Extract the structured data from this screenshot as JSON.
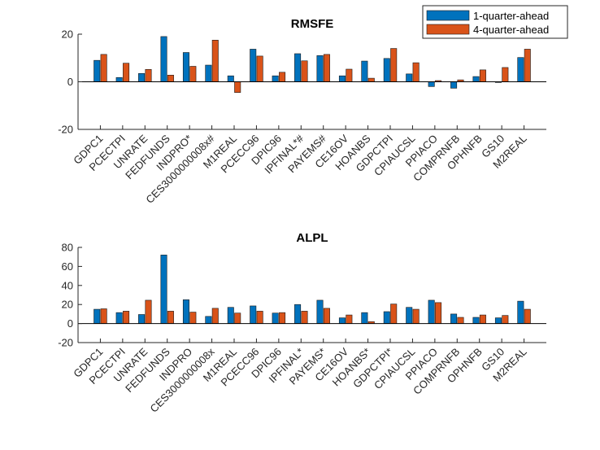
{
  "colors": {
    "series1": "#0072BD",
    "series2": "#D95319"
  },
  "legend": [
    "1-quarter-ahead",
    "4-quarter-ahead"
  ],
  "chart_data": [
    {
      "type": "bar",
      "title": "RMSFE",
      "ylim": [
        -20,
        20
      ],
      "yticks": [
        -20,
        0,
        20
      ],
      "legend_position": "top-right",
      "categories": [
        "GDPC1",
        "PCECTPI",
        "UNRATE",
        "FEDFUNDS",
        "INDPRO*",
        "CES3000000008x#",
        "M1REAL",
        "PCECC96",
        "DPIC96",
        "IPFINAL*#",
        "PAYEMS#",
        "CE16OV",
        "HOANBS",
        "GDPCTPI",
        "CPIAUCSL",
        "PPIACO",
        "COMPRNFB",
        "OPHNFB",
        "GS10",
        "M2REAL"
      ],
      "series": [
        {
          "name": "1-quarter-ahead",
          "values": [
            9,
            1.8,
            3.5,
            19,
            12.3,
            7,
            2.5,
            13.7,
            2.5,
            11.8,
            11,
            2.5,
            8.7,
            9.8,
            3.3,
            -2,
            -2.7,
            2.2,
            -0.3,
            10.2
          ]
        },
        {
          "name": "4-quarter-ahead",
          "values": [
            11.5,
            7.8,
            5.2,
            2.8,
            6.5,
            17.5,
            -4.5,
            10.8,
            4,
            8.8,
            11.5,
            5.3,
            1.5,
            14,
            8,
            0.5,
            0.8,
            5,
            6,
            13.7
          ]
        }
      ]
    },
    {
      "type": "bar",
      "title": "ALPL",
      "ylim": [
        -20,
        80
      ],
      "yticks": [
        -20,
        0,
        20,
        40,
        60,
        80
      ],
      "categories": [
        "GDPC1",
        "PCECTPI",
        "UNRATE",
        "FEDFUNDS",
        "INDPRO",
        "CES3000000008x",
        "M1REAL",
        "PCECC96",
        "DPIC96",
        "IPFINAL*",
        "PAYEMS*",
        "CE16OV",
        "HOANBS*",
        "GDPCTPI*",
        "CPIAUCSL",
        "PPIACO",
        "COMPRNFB",
        "OPHNFB",
        "GS10",
        "M2REAL"
      ],
      "series": [
        {
          "name": "1-quarter-ahead",
          "values": [
            15,
            11.5,
            9.5,
            72,
            25,
            7.5,
            17,
            18.5,
            11,
            20,
            24.5,
            6,
            11.5,
            12.5,
            17,
            24.5,
            10,
            6.5,
            6,
            23.5
          ]
        },
        {
          "name": "4-quarter-ahead",
          "values": [
            15.5,
            13,
            24.5,
            13,
            12,
            16,
            11,
            13,
            11.5,
            13,
            16,
            9,
            2,
            20.5,
            15,
            22,
            6.5,
            9,
            8.5,
            15
          ]
        }
      ]
    }
  ]
}
